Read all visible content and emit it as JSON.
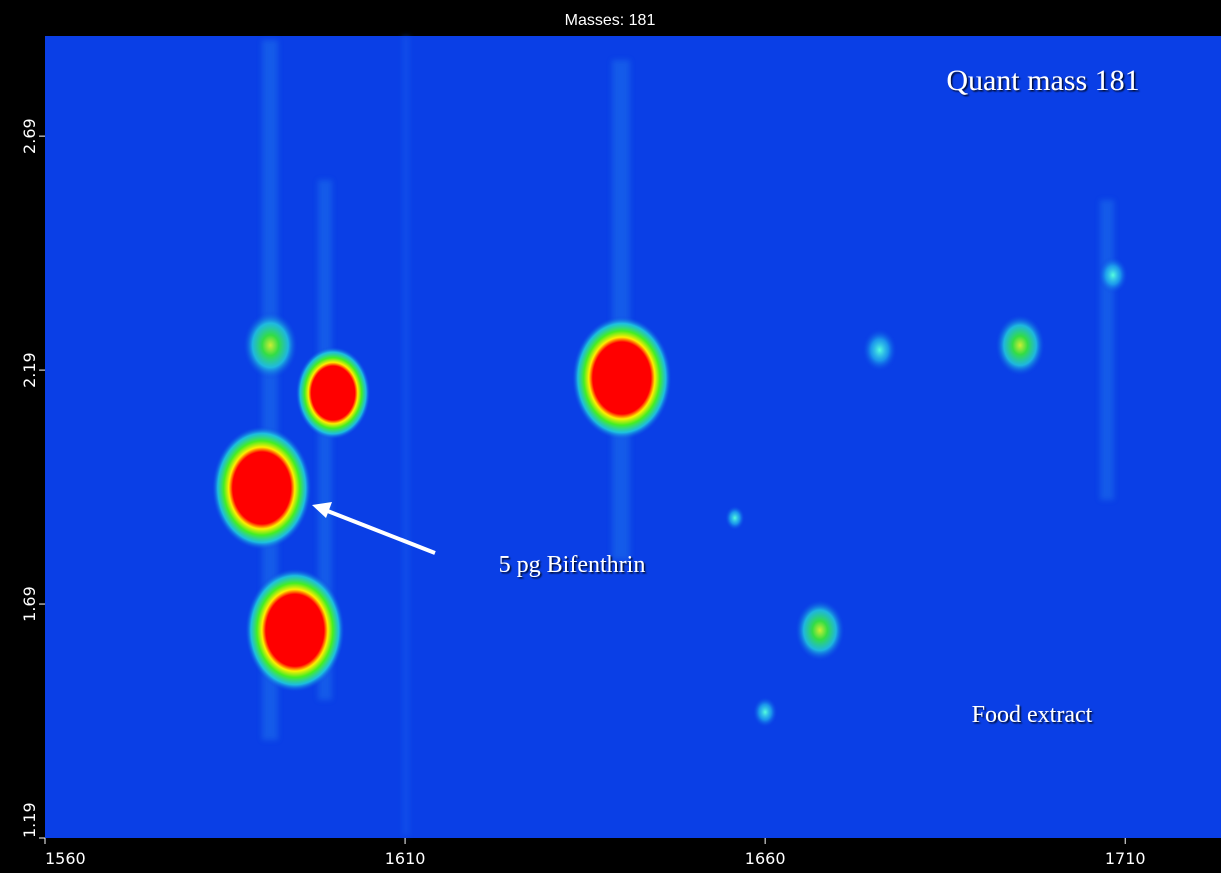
{
  "chart_data": {
    "type": "contour",
    "title": "Masses: 181",
    "xlim": [
      1560,
      1723.3
    ],
    "ylim": [
      1.19,
      2.904
    ],
    "xticks": [
      1560,
      1610,
      1660,
      1710
    ],
    "yticks": [
      1.19,
      1.69,
      2.19,
      2.69
    ],
    "background": "#0a3fe6",
    "peaks": {
      "x": [
        1591.3,
        1600,
        1590.1,
        1594.7,
        1640.1,
        1667.6,
        1695.4,
        1675.9,
        1708.3,
        1660,
        1655.8
      ],
      "y": [
        2.243,
        2.141,
        1.938,
        1.634,
        2.173,
        1.634,
        2.243,
        2.233,
        2.393,
        1.459,
        1.874
      ],
      "intensity": [
        55,
        75,
        100,
        100,
        100,
        50,
        50,
        35,
        30,
        25,
        20
      ]
    },
    "annotations": [
      "Quant mass 181",
      "Food extract",
      "5 pg Bifenthrin"
    ]
  }
}
